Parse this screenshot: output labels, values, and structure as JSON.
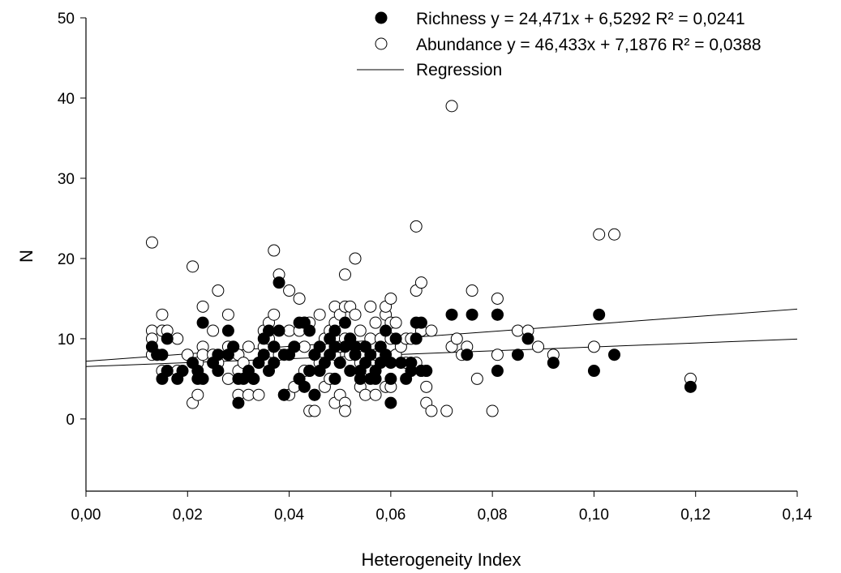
{
  "chart_data": {
    "type": "scatter",
    "title": "",
    "xlabel": "Heterogeneity Index",
    "ylabel": "N",
    "xlim": [
      0,
      0.14
    ],
    "ylim": [
      -9,
      50
    ],
    "x_ticks": [
      "0,00",
      "0,02",
      "0,04",
      "0,06",
      "0,08",
      "0,10",
      "0,12",
      "0,14"
    ],
    "y_ticks": [
      "0",
      "10",
      "20",
      "30",
      "40",
      "50"
    ],
    "grid": false,
    "legend_position": "top-right",
    "legend": [
      {
        "symbol": "filled-circle",
        "label": "Richness y = 24,471x + 6,5292 R² = 0,0241"
      },
      {
        "symbol": "open-circle",
        "label": "Abundance y = 46,433x + 7,1876 R² = 0,0388"
      },
      {
        "symbol": "line",
        "label": "Regression"
      }
    ],
    "series": [
      {
        "name": "Richness",
        "marker": "filled",
        "color": "#000000",
        "regression": {
          "slope": 24.471,
          "intercept": 6.5292
        },
        "points": [
          [
            0.013,
            9
          ],
          [
            0.014,
            8
          ],
          [
            0.015,
            5
          ],
          [
            0.015,
            8
          ],
          [
            0.016,
            10
          ],
          [
            0.016,
            6
          ],
          [
            0.018,
            5
          ],
          [
            0.019,
            6
          ],
          [
            0.021,
            7
          ],
          [
            0.022,
            6
          ],
          [
            0.022,
            5
          ],
          [
            0.023,
            12
          ],
          [
            0.023,
            5
          ],
          [
            0.025,
            7
          ],
          [
            0.026,
            6
          ],
          [
            0.026,
            8
          ],
          [
            0.028,
            11
          ],
          [
            0.028,
            8
          ],
          [
            0.029,
            9
          ],
          [
            0.03,
            5
          ],
          [
            0.03,
            2
          ],
          [
            0.031,
            5
          ],
          [
            0.032,
            6
          ],
          [
            0.033,
            5
          ],
          [
            0.034,
            7
          ],
          [
            0.035,
            10
          ],
          [
            0.035,
            8
          ],
          [
            0.036,
            6
          ],
          [
            0.036,
            11
          ],
          [
            0.037,
            9
          ],
          [
            0.037,
            7
          ],
          [
            0.038,
            17
          ],
          [
            0.038,
            11
          ],
          [
            0.039,
            8
          ],
          [
            0.039,
            3
          ],
          [
            0.04,
            8
          ],
          [
            0.041,
            9
          ],
          [
            0.042,
            12
          ],
          [
            0.042,
            5
          ],
          [
            0.043,
            4
          ],
          [
            0.043,
            12
          ],
          [
            0.044,
            11
          ],
          [
            0.044,
            6
          ],
          [
            0.045,
            8
          ],
          [
            0.045,
            3
          ],
          [
            0.046,
            9
          ],
          [
            0.046,
            6
          ],
          [
            0.047,
            7
          ],
          [
            0.048,
            8
          ],
          [
            0.048,
            10
          ],
          [
            0.049,
            9
          ],
          [
            0.049,
            5
          ],
          [
            0.049,
            11
          ],
          [
            0.05,
            7
          ],
          [
            0.051,
            12
          ],
          [
            0.051,
            9
          ],
          [
            0.052,
            6
          ],
          [
            0.052,
            10
          ],
          [
            0.053,
            9
          ],
          [
            0.053,
            8
          ],
          [
            0.054,
            5
          ],
          [
            0.054,
            6
          ],
          [
            0.055,
            7
          ],
          [
            0.055,
            9
          ],
          [
            0.056,
            8
          ],
          [
            0.056,
            5
          ],
          [
            0.057,
            6
          ],
          [
            0.057,
            5
          ],
          [
            0.058,
            7
          ],
          [
            0.058,
            9
          ],
          [
            0.059,
            8
          ],
          [
            0.059,
            11
          ],
          [
            0.06,
            5
          ],
          [
            0.06,
            2
          ],
          [
            0.06,
            7
          ],
          [
            0.061,
            10
          ],
          [
            0.062,
            7
          ],
          [
            0.063,
            5
          ],
          [
            0.064,
            6
          ],
          [
            0.064,
            7
          ],
          [
            0.065,
            10
          ],
          [
            0.065,
            12
          ],
          [
            0.066,
            12
          ],
          [
            0.066,
            6
          ],
          [
            0.067,
            6
          ],
          [
            0.072,
            13
          ],
          [
            0.075,
            8
          ],
          [
            0.076,
            13
          ],
          [
            0.081,
            6
          ],
          [
            0.081,
            13
          ],
          [
            0.085,
            8
          ],
          [
            0.087,
            10
          ],
          [
            0.092,
            7
          ],
          [
            0.1,
            6
          ],
          [
            0.101,
            13
          ],
          [
            0.104,
            8
          ],
          [
            0.119,
            4
          ]
        ]
      },
      {
        "name": "Abundance",
        "marker": "open",
        "color": "#000000",
        "regression": {
          "slope": 46.433,
          "intercept": 7.1876
        },
        "points": [
          [
            0.013,
            22
          ],
          [
            0.013,
            11
          ],
          [
            0.013,
            10
          ],
          [
            0.013,
            8
          ],
          [
            0.014,
            8
          ],
          [
            0.015,
            13
          ],
          [
            0.015,
            11
          ],
          [
            0.015,
            6
          ],
          [
            0.016,
            11
          ],
          [
            0.016,
            6
          ],
          [
            0.018,
            10
          ],
          [
            0.018,
            6
          ],
          [
            0.02,
            8
          ],
          [
            0.021,
            2
          ],
          [
            0.021,
            19
          ],
          [
            0.022,
            3
          ],
          [
            0.022,
            7
          ],
          [
            0.023,
            9
          ],
          [
            0.023,
            8
          ],
          [
            0.023,
            14
          ],
          [
            0.025,
            11
          ],
          [
            0.025,
            8
          ],
          [
            0.026,
            16
          ],
          [
            0.026,
            7
          ],
          [
            0.028,
            13
          ],
          [
            0.028,
            5
          ],
          [
            0.028,
            9
          ],
          [
            0.029,
            9
          ],
          [
            0.03,
            3
          ],
          [
            0.03,
            8
          ],
          [
            0.03,
            6
          ],
          [
            0.031,
            7
          ],
          [
            0.032,
            9
          ],
          [
            0.032,
            3
          ],
          [
            0.033,
            5
          ],
          [
            0.034,
            3
          ],
          [
            0.034,
            7
          ],
          [
            0.035,
            11
          ],
          [
            0.035,
            9
          ],
          [
            0.036,
            7
          ],
          [
            0.036,
            10
          ],
          [
            0.036,
            12
          ],
          [
            0.037,
            21
          ],
          [
            0.037,
            9
          ],
          [
            0.037,
            13
          ],
          [
            0.038,
            18
          ],
          [
            0.038,
            8
          ],
          [
            0.039,
            3
          ],
          [
            0.04,
            16
          ],
          [
            0.04,
            11
          ],
          [
            0.04,
            3
          ],
          [
            0.041,
            9
          ],
          [
            0.041,
            4
          ],
          [
            0.042,
            15
          ],
          [
            0.042,
            11
          ],
          [
            0.042,
            5
          ],
          [
            0.043,
            12
          ],
          [
            0.043,
            9
          ],
          [
            0.043,
            6
          ],
          [
            0.044,
            1
          ],
          [
            0.044,
            12
          ],
          [
            0.044,
            6
          ],
          [
            0.045,
            1
          ],
          [
            0.045,
            8
          ],
          [
            0.045,
            3
          ],
          [
            0.046,
            13
          ],
          [
            0.046,
            9
          ],
          [
            0.046,
            7
          ],
          [
            0.047,
            10
          ],
          [
            0.047,
            4
          ],
          [
            0.048,
            11
          ],
          [
            0.048,
            5
          ],
          [
            0.049,
            14
          ],
          [
            0.049,
            12
          ],
          [
            0.049,
            10
          ],
          [
            0.049,
            8
          ],
          [
            0.049,
            2
          ],
          [
            0.05,
            13
          ],
          [
            0.05,
            9
          ],
          [
            0.05,
            7
          ],
          [
            0.05,
            3
          ],
          [
            0.051,
            14
          ],
          [
            0.051,
            18
          ],
          [
            0.051,
            10
          ],
          [
            0.051,
            2
          ],
          [
            0.051,
            1
          ],
          [
            0.052,
            14
          ],
          [
            0.052,
            10
          ],
          [
            0.052,
            8
          ],
          [
            0.053,
            20
          ],
          [
            0.053,
            13
          ],
          [
            0.053,
            8
          ],
          [
            0.054,
            11
          ],
          [
            0.054,
            7
          ],
          [
            0.054,
            4
          ],
          [
            0.055,
            8
          ],
          [
            0.055,
            3
          ],
          [
            0.056,
            14
          ],
          [
            0.056,
            10
          ],
          [
            0.056,
            6
          ],
          [
            0.057,
            12
          ],
          [
            0.057,
            8
          ],
          [
            0.057,
            3
          ],
          [
            0.058,
            10
          ],
          [
            0.058,
            8
          ],
          [
            0.059,
            13
          ],
          [
            0.059,
            4
          ],
          [
            0.059,
            14
          ],
          [
            0.06,
            12
          ],
          [
            0.06,
            10
          ],
          [
            0.06,
            4
          ],
          [
            0.06,
            15
          ],
          [
            0.061,
            12
          ],
          [
            0.061,
            8
          ],
          [
            0.062,
            9
          ],
          [
            0.063,
            7
          ],
          [
            0.063,
            10
          ],
          [
            0.064,
            10
          ],
          [
            0.064,
            7
          ],
          [
            0.065,
            24
          ],
          [
            0.065,
            16
          ],
          [
            0.065,
            7
          ],
          [
            0.066,
            17
          ],
          [
            0.066,
            11
          ],
          [
            0.066,
            6
          ],
          [
            0.067,
            6
          ],
          [
            0.067,
            2
          ],
          [
            0.067,
            4
          ],
          [
            0.068,
            1
          ],
          [
            0.068,
            11
          ],
          [
            0.071,
            1
          ],
          [
            0.072,
            9
          ],
          [
            0.072,
            39
          ],
          [
            0.073,
            10
          ],
          [
            0.074,
            8
          ],
          [
            0.075,
            9
          ],
          [
            0.076,
            16
          ],
          [
            0.077,
            5
          ],
          [
            0.08,
            1
          ],
          [
            0.081,
            15
          ],
          [
            0.081,
            13
          ],
          [
            0.081,
            8
          ],
          [
            0.085,
            11
          ],
          [
            0.087,
            11
          ],
          [
            0.089,
            9
          ],
          [
            0.092,
            8
          ],
          [
            0.1,
            9
          ],
          [
            0.101,
            23
          ],
          [
            0.104,
            23
          ],
          [
            0.119,
            5
          ]
        ]
      }
    ]
  }
}
